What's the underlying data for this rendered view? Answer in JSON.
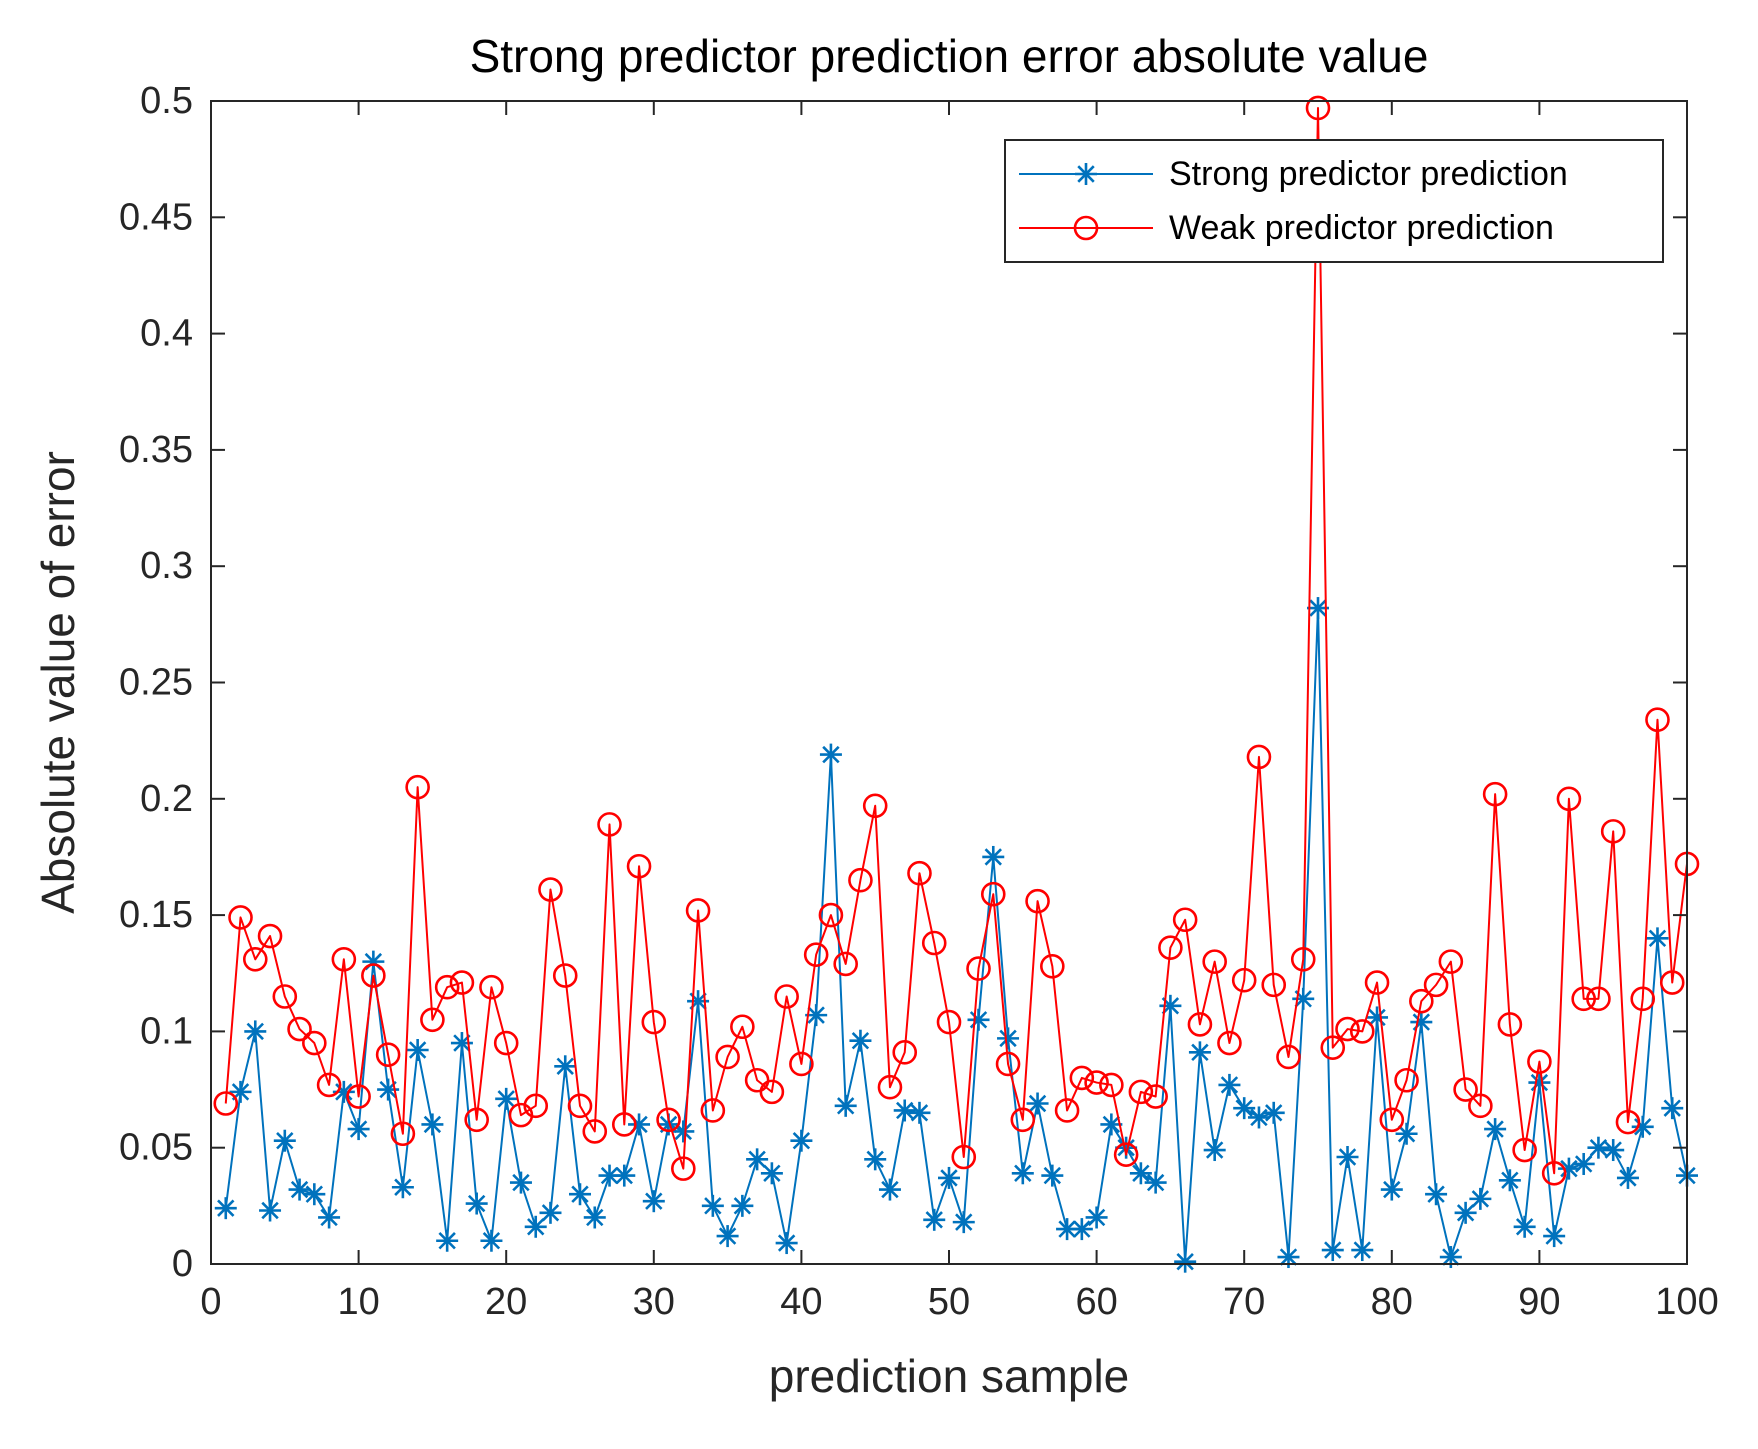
{
  "chart_data": {
    "type": "line",
    "title": "Strong predictor prediction error absolute value",
    "xlabel": "prediction sample",
    "ylabel": "Absolute value of error",
    "xlim": [
      0,
      100
    ],
    "ylim": [
      0,
      0.5
    ],
    "xticks": [
      0,
      10,
      20,
      30,
      40,
      50,
      60,
      70,
      80,
      90,
      100
    ],
    "xtick_labels": [
      "0",
      "10",
      "20",
      "30",
      "40",
      "50",
      "60",
      "70",
      "80",
      "90",
      "100"
    ],
    "yticks": [
      0,
      0.05,
      0.1,
      0.15,
      0.2,
      0.25,
      0.3,
      0.35,
      0.4,
      0.45,
      0.5
    ],
    "ytick_labels": [
      "0",
      "0.05",
      "0.1",
      "0.15",
      "0.2",
      "0.25",
      "0.3",
      "0.35",
      "0.4",
      "0.45",
      "0.5"
    ],
    "grid": false,
    "legend_position": "top-right",
    "series": [
      {
        "name": "Strong predictor prediction",
        "color": "#0072BD",
        "marker": "asterisk",
        "values": [
          0.024,
          0.074,
          0.1,
          0.023,
          0.053,
          0.032,
          0.03,
          0.02,
          0.074,
          0.058,
          0.13,
          0.075,
          0.033,
          0.092,
          0.06,
          0.01,
          0.095,
          0.026,
          0.01,
          0.071,
          0.035,
          0.016,
          0.022,
          0.085,
          0.03,
          0.02,
          0.038,
          0.038,
          0.06,
          0.027,
          0.06,
          0.057,
          0.113,
          0.025,
          0.012,
          0.025,
          0.045,
          0.039,
          0.009,
          0.053,
          0.107,
          0.219,
          0.068,
          0.096,
          0.045,
          0.032,
          0.066,
          0.065,
          0.019,
          0.037,
          0.018,
          0.105,
          0.175,
          0.097,
          0.039,
          0.069,
          0.038,
          0.015,
          0.015,
          0.02,
          0.06,
          0.05,
          0.039,
          0.035,
          0.111,
          0.001,
          0.091,
          0.049,
          0.077,
          0.067,
          0.063,
          0.065,
          0.003,
          0.114,
          0.282,
          0.006,
          0.046,
          0.006,
          0.106,
          0.032,
          0.056,
          0.104,
          0.03,
          0.003,
          0.022,
          0.028,
          0.058,
          0.036,
          0.016,
          0.078,
          0.012,
          0.041,
          0.043,
          0.05,
          0.049,
          0.037,
          0.059,
          0.14,
          0.067,
          0.038
        ]
      },
      {
        "name": "Weak predictor prediction",
        "color": "#FF0000",
        "marker": "circle",
        "values": [
          0.069,
          0.149,
          0.131,
          0.141,
          0.115,
          0.101,
          0.095,
          0.077,
          0.131,
          0.072,
          0.124,
          0.09,
          0.056,
          0.205,
          0.105,
          0.119,
          0.121,
          0.062,
          0.119,
          0.095,
          0.064,
          0.068,
          0.161,
          0.124,
          0.068,
          0.057,
          0.189,
          0.06,
          0.171,
          0.104,
          0.062,
          0.041,
          0.152,
          0.066,
          0.089,
          0.102,
          0.079,
          0.074,
          0.115,
          0.086,
          0.133,
          0.15,
          0.129,
          0.165,
          0.197,
          0.076,
          0.091,
          0.168,
          0.138,
          0.104,
          0.046,
          0.127,
          0.159,
          0.086,
          0.062,
          0.156,
          0.128,
          0.066,
          0.08,
          0.078,
          0.077,
          0.047,
          0.074,
          0.072,
          0.136,
          0.148,
          0.103,
          0.13,
          0.095,
          0.122,
          0.218,
          0.12,
          0.089,
          0.131,
          0.497,
          0.093,
          0.101,
          0.1,
          0.121,
          0.062,
          0.079,
          0.113,
          0.12,
          0.13,
          0.075,
          0.068,
          0.202,
          0.103,
          0.049,
          0.087,
          0.039,
          0.2,
          0.114,
          0.114,
          0.186,
          0.061,
          0.114,
          0.234,
          0.121,
          0.172
        ]
      }
    ]
  }
}
